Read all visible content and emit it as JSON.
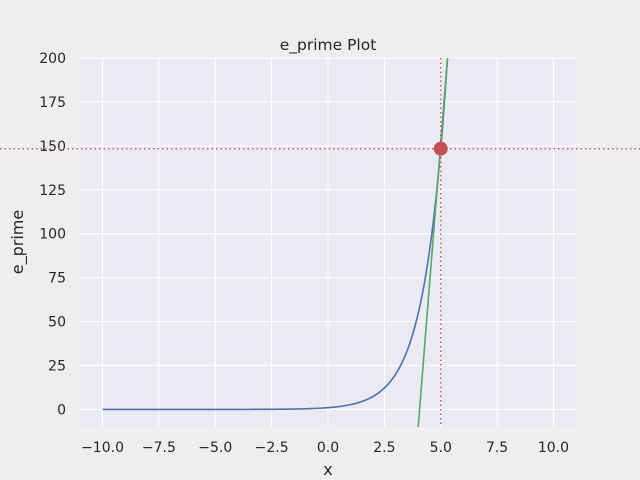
{
  "chart_data": {
    "type": "line",
    "title": "e_prime Plot",
    "xlabel": "x",
    "ylabel": "e_prime",
    "xlim": [
      -11,
      11
    ],
    "ylim": [
      -10,
      200
    ],
    "x_ticks": [
      -10,
      -7.5,
      -5,
      -2.5,
      0,
      2.5,
      5,
      7.5,
      10
    ],
    "x_tick_labels": [
      "−10.0",
      "−7.5",
      "−5.0",
      "−2.5",
      "0.0",
      "2.5",
      "5.0",
      "7.5",
      "10.0"
    ],
    "y_ticks": [
      0,
      25,
      50,
      75,
      100,
      125,
      150,
      175,
      200
    ],
    "y_tick_labels": [
      "0",
      "25",
      "50",
      "75",
      "100",
      "125",
      "150",
      "175",
      "200"
    ],
    "grid": true,
    "series": [
      {
        "kind": "curve",
        "function": "exp",
        "x_range": [
          -10,
          10
        ],
        "color": "#4c72b0"
      },
      {
        "kind": "tangent",
        "x": [
          4,
          5.3
        ],
        "y": [
          -10,
          200
        ],
        "color": "#55a868"
      }
    ],
    "point": {
      "x": 5,
      "y": 148.4,
      "color": "#c44e52"
    },
    "reference_lines": {
      "vertical_x": 5,
      "horizontal_y": 148.4,
      "color": "#c44e52",
      "style": "dotted"
    },
    "background": "#eaeaf2"
  }
}
